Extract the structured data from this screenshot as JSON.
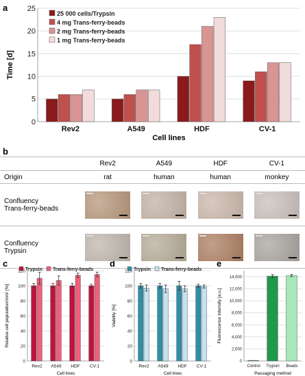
{
  "panel_letters": {
    "a": "a",
    "b": "b",
    "c": "c",
    "d": "d",
    "e": "e"
  },
  "chart_data": [
    {
      "panel": "a",
      "type": "bar",
      "categories": [
        "Rev2",
        "A549",
        "HDF",
        "CV-1"
      ],
      "series": [
        {
          "name": "25 000 cells/Trypsin",
          "values": [
            5,
            5,
            10,
            9
          ],
          "color": "#8b1a1a"
        },
        {
          "name": "4 mg Trans-ferry-beads",
          "values": [
            6,
            6,
            17,
            11
          ],
          "color": "#c0504d"
        },
        {
          "name": "2 mg Trans-ferry-beads",
          "values": [
            6,
            7,
            21,
            13
          ],
          "color": "#d99594"
        },
        {
          "name": "1 mg Trans-ferry-beads",
          "values": [
            7,
            7,
            23,
            13
          ],
          "color": "#f2dcdb"
        }
      ],
      "yticks": [
        0,
        5,
        10,
        15,
        20,
        25
      ],
      "ylim": [
        0,
        25
      ],
      "xlabel": "Cell lines",
      "ylabel": "Time [d]",
      "legend": "top-left",
      "grid": true
    },
    {
      "panel": "c",
      "type": "bar",
      "categories": [
        "Rev2",
        "A549",
        "HDF",
        "CV-1"
      ],
      "series": [
        {
          "name": "Trypsin",
          "values": [
            100,
            100,
            100,
            100
          ],
          "errors": [
            3,
            3,
            3,
            2
          ],
          "color": "#c0143c"
        },
        {
          "name": "Trans-ferry-beads",
          "values": [
            110,
            107,
            114,
            115
          ],
          "errors": [
            8,
            6,
            3,
            3
          ],
          "color": "#f0607a"
        }
      ],
      "yticks": [
        0,
        20,
        40,
        60,
        80,
        100,
        120
      ],
      "ylim": [
        0,
        120
      ],
      "xlabel": "Cell lines",
      "ylabel": "Relative cell population/mm² [%]",
      "legend": "top",
      "grid": true
    },
    {
      "panel": "d",
      "type": "bar",
      "categories": [
        "Rev2",
        "A549",
        "HDF",
        "CV-1"
      ],
      "series": [
        {
          "name": "Trypsin",
          "values": [
            100,
            100,
            100,
            100
          ],
          "errors": [
            3,
            3,
            6,
            2
          ],
          "color": "#2e8fa8"
        },
        {
          "name": "Trans-ferry-beads",
          "values": [
            97,
            96,
            96,
            99
          ],
          "errors": [
            4,
            5,
            4,
            2
          ],
          "color": "#c5e3ee"
        }
      ],
      "yticks": [
        0,
        20,
        40,
        60,
        80,
        100,
        120
      ],
      "ylim": [
        0,
        120
      ],
      "xlabel": "Cell lines",
      "ylabel": "Viability [%]",
      "legend": "top",
      "grid": true
    },
    {
      "panel": "e",
      "type": "bar",
      "categories": [
        "Control",
        "Trypsin",
        "Beads"
      ],
      "series": [
        {
          "name": "",
          "values": [
            100,
            14100,
            14200
          ],
          "errors": [
            0,
            250,
            200
          ],
          "colors": [
            "#2e8b57",
            "#1e9a4a",
            "#a6e8b8"
          ]
        }
      ],
      "yticks": [
        0,
        2000,
        4000,
        6000,
        8000,
        10000,
        12000,
        14000
      ],
      "ytick_labels": [
        "0",
        "2,000",
        "4,000",
        "6,000",
        "8,000",
        "10,000",
        "12,000",
        "14,000"
      ],
      "ylim": [
        0,
        15000
      ],
      "xlabel": "Passaging method",
      "ylabel": "Fluorescence intensity [a.u.]",
      "grid": true
    }
  ],
  "table_b": {
    "headers": [
      "",
      "Rev2",
      "A549",
      "HDF",
      "CV-1"
    ],
    "origin_label": "Origin",
    "origins": [
      "rat",
      "human",
      "human",
      "monkey"
    ],
    "row_beads_label_1": "Confluency",
    "row_beads_label_2": "Trans-ferry-beads",
    "row_trypsin_label_1": "Confluency",
    "row_trypsin_label_2": "Trypsin",
    "micrograph_tint_beads": [
      "#b7977c",
      "#c3b3a6",
      "#cbb7ab",
      "#c9c0bb"
    ],
    "micrograph_tint_trypsin": [
      "#bfb7ad",
      "#b6ab98",
      "#ad7f62",
      "#a9a49f"
    ]
  }
}
